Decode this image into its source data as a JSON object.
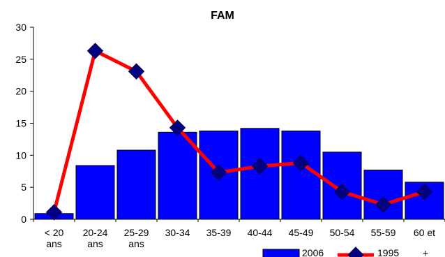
{
  "chart_data": {
    "type": "bar",
    "title": "FAM",
    "xlabel": "",
    "ylabel": "",
    "ylim": [
      0,
      30
    ],
    "yticks": [
      0,
      5,
      10,
      15,
      20,
      25,
      30
    ],
    "categories": [
      "< 20 ans",
      "20-24 ans",
      "25-29 ans",
      "30-34",
      "35-39",
      "40-44",
      "45-49",
      "50-54",
      "55-59",
      "60 et +"
    ],
    "category_lines": [
      [
        "< 20",
        "ans"
      ],
      [
        "20-24",
        "ans"
      ],
      [
        "25-29",
        "ans"
      ],
      [
        "30-34"
      ],
      [
        "35-39"
      ],
      [
        "40-44"
      ],
      [
        "45-49"
      ],
      [
        "50-54"
      ],
      [
        "55-59"
      ],
      [
        "60 et"
      ]
    ],
    "legend_position": "bottom-right",
    "series": [
      {
        "name": "2006",
        "kind": "bar",
        "color": "#0000ff",
        "values": [
          0.9,
          8.4,
          10.8,
          13.6,
          13.8,
          14.2,
          13.8,
          10.5,
          7.7,
          5.8
        ]
      },
      {
        "name": "1995",
        "kind": "line",
        "color": "#ff0000",
        "marker_color": "#000080",
        "values": [
          1.1,
          26.3,
          23.1,
          14.3,
          7.3,
          8.3,
          8.8,
          4.3,
          2.3,
          4.3
        ]
      }
    ],
    "legend_extra": "+"
  }
}
